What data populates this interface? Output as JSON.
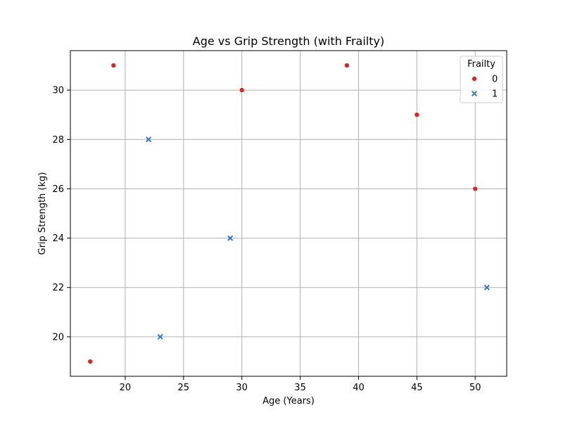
{
  "chart_data": {
    "type": "scatter",
    "title": "Age vs Grip Strength (with Frailty)",
    "xlabel": "Age (Years)",
    "ylabel": "Grip Strength (kg)",
    "xlim": [
      15.3,
      52.7
    ],
    "ylim": [
      18.4,
      31.6
    ],
    "xticks": [
      20,
      25,
      30,
      35,
      40,
      45,
      50
    ],
    "yticks": [
      20,
      22,
      24,
      26,
      28,
      30
    ],
    "grid": true,
    "legend": {
      "title": "Frailty",
      "placement": "top-right"
    },
    "series": [
      {
        "name": "0",
        "marker": "circle",
        "color": "#d62728",
        "points": [
          {
            "x": 17,
            "y": 19
          },
          {
            "x": 19,
            "y": 31
          },
          {
            "x": 30,
            "y": 30
          },
          {
            "x": 39,
            "y": 31
          },
          {
            "x": 45,
            "y": 29
          },
          {
            "x": 50,
            "y": 26
          }
        ]
      },
      {
        "name": "1",
        "marker": "x",
        "color": "#3a78b5",
        "points": [
          {
            "x": 22,
            "y": 28
          },
          {
            "x": 23,
            "y": 20
          },
          {
            "x": 29,
            "y": 24
          },
          {
            "x": 51,
            "y": 22
          }
        ]
      }
    ]
  }
}
